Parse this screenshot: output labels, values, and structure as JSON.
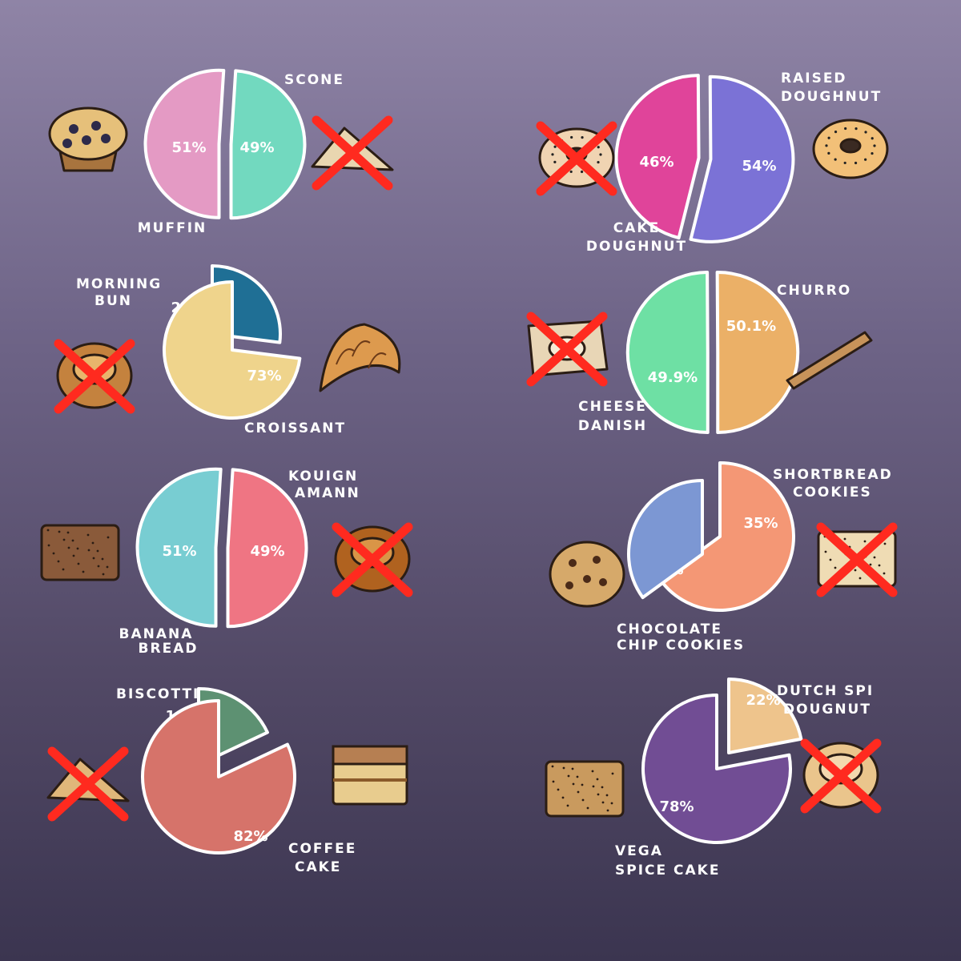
{
  "chart_data": [
    {
      "type": "pie",
      "slices": [
        {
          "label": "MUFFIN",
          "value": 51,
          "display": "51%",
          "color": "#e49ac4",
          "chosen": true
        },
        {
          "label": "SCONE",
          "value": 49,
          "display": "49%",
          "color": "#72d9bf",
          "chosen": false
        }
      ],
      "images": [
        {
          "icon": "muffin-icon",
          "crossed": false
        },
        {
          "icon": "scone-icon",
          "crossed": true
        }
      ]
    },
    {
      "type": "pie",
      "slices": [
        {
          "label": "CAKE DOUGHNUT",
          "value": 46,
          "display": "46%",
          "color": "#e0449a",
          "chosen": false
        },
        {
          "label": "RAISED DOUGHNUT",
          "value": 54,
          "display": "54%",
          "color": "#7b72d6",
          "chosen": true
        }
      ],
      "images": [
        {
          "icon": "cake-doughnut-icon",
          "crossed": true
        },
        {
          "icon": "raised-doughnut-icon",
          "crossed": false
        }
      ]
    },
    {
      "type": "pie",
      "slices": [
        {
          "label": "MORNING BUN",
          "value": 27,
          "display": "27%",
          "color": "#1f6f95",
          "chosen": false
        },
        {
          "label": "CROISSANT",
          "value": 73,
          "display": "73%",
          "color": "#efd48c",
          "chosen": true
        }
      ],
      "images": [
        {
          "icon": "morning-bun-icon",
          "crossed": true
        },
        {
          "icon": "croissant-icon",
          "crossed": false
        }
      ]
    },
    {
      "type": "pie",
      "slices": [
        {
          "label": "CHEESE DANISH",
          "value": 49.9,
          "display": "49.9%",
          "color": "#6ee0a4",
          "chosen": false
        },
        {
          "label": "CHURRO",
          "value": 50.1,
          "display": "50.1%",
          "color": "#ebb067",
          "chosen": true
        }
      ],
      "images": [
        {
          "icon": "cheese-danish-icon",
          "crossed": true
        },
        {
          "icon": "churro-icon",
          "crossed": false
        }
      ]
    },
    {
      "type": "pie",
      "slices": [
        {
          "label": "BANANA BREAD",
          "value": 51,
          "display": "51%",
          "color": "#78cdd2",
          "chosen": true
        },
        {
          "label": "KOUIGN AMANN",
          "value": 49,
          "display": "49%",
          "color": "#ef7583",
          "chosen": false
        }
      ],
      "images": [
        {
          "icon": "banana-bread-icon",
          "crossed": false
        },
        {
          "icon": "kouign-amann-icon",
          "crossed": true
        }
      ]
    },
    {
      "type": "pie",
      "slices": [
        {
          "label": "CHOCOLATE CHIP COOKIES",
          "value": 65,
          "display": "65%",
          "color": "#f49775",
          "chosen": true
        },
        {
          "label": "SHORTBREAD COOKIES",
          "value": 35,
          "display": "35%",
          "color": "#7c97d3",
          "chosen": false
        }
      ],
      "images": [
        {
          "icon": "chocolate-chip-cookie-icon",
          "crossed": false
        },
        {
          "icon": "shortbread-cookie-icon",
          "crossed": true
        }
      ]
    },
    {
      "type": "pie",
      "slices": [
        {
          "label": "BISCOTTI",
          "value": 18,
          "display": "18%",
          "color": "#5d9172",
          "chosen": false
        },
        {
          "label": "COFFEE CAKE",
          "value": 82,
          "display": "82%",
          "color": "#d6736a",
          "chosen": true
        }
      ],
      "images": [
        {
          "icon": "biscotti-icon",
          "crossed": true
        },
        {
          "icon": "coffee-cake-icon",
          "crossed": false
        }
      ]
    },
    {
      "type": "pie",
      "slices": [
        {
          "label": "VEGAN DOUGHNUT",
          "value": 22,
          "display": "22%",
          "color": "#eec48c",
          "chosen": false
        },
        {
          "label": "DUTCH SPICE CAKE",
          "value": 78,
          "display": "78%",
          "color": "#714d94",
          "chosen": true
        }
      ],
      "images": [
        {
          "icon": "dutch-spice-cake-icon",
          "crossed": false
        },
        {
          "icon": "vegan-doughnut-icon",
          "crossed": true
        }
      ]
    }
  ]
}
